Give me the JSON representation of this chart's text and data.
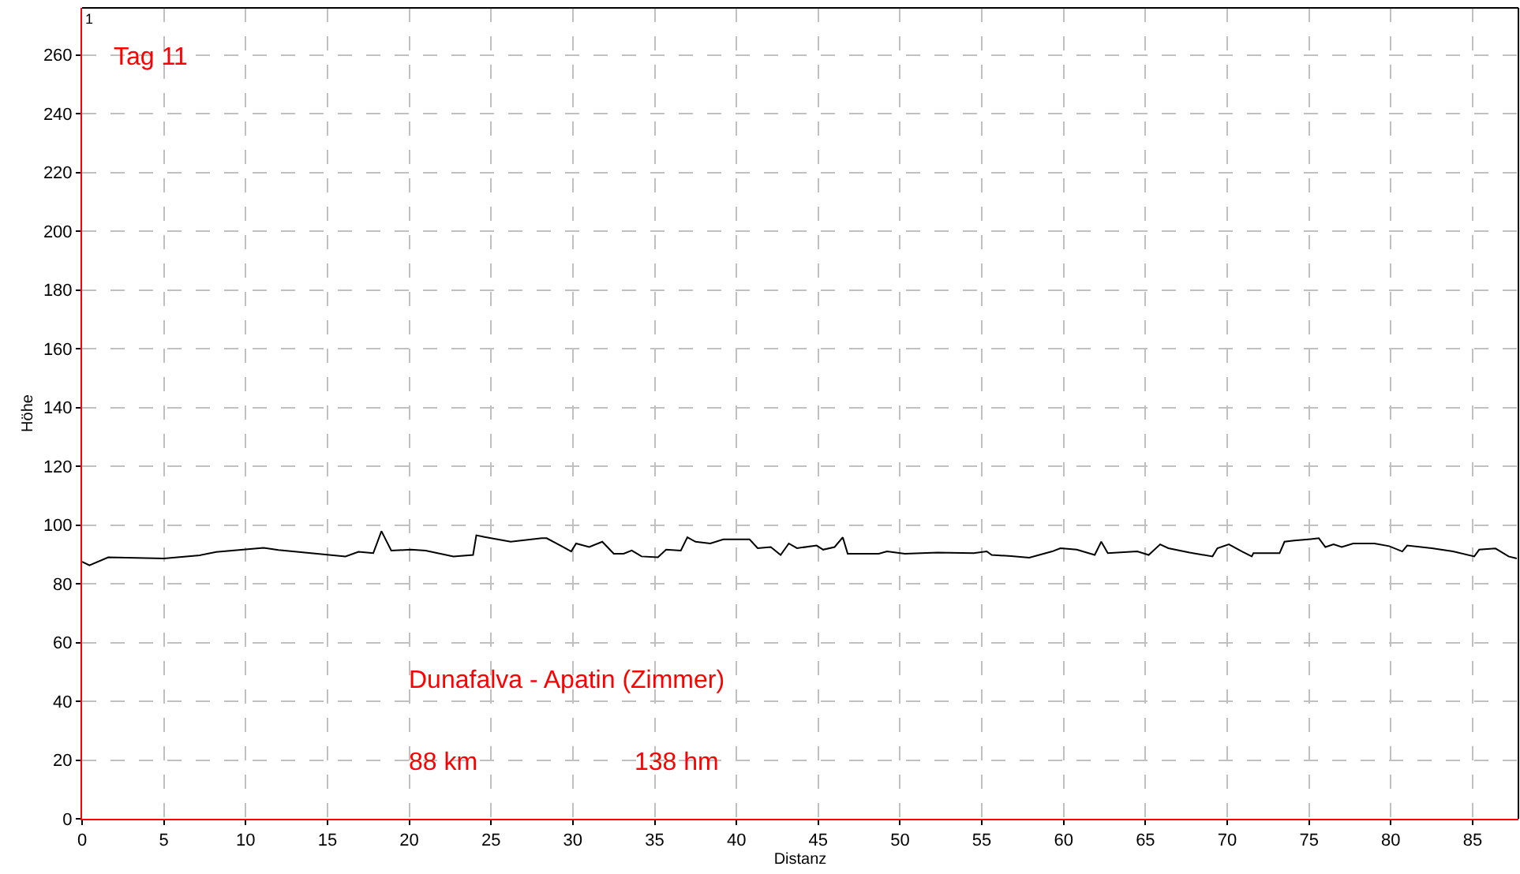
{
  "chart_data": {
    "type": "line",
    "xlabel": "Distanz",
    "ylabel": "Höhe",
    "annotations": [
      "1",
      "Tag 11",
      "Dunafalva - Apatin (Zimmer)",
      "88 km",
      "138 hm"
    ],
    "x": [
      0,
      0.45,
      1.6,
      5,
      7.2,
      8.2,
      11.1,
      12.0,
      14.0,
      16.1,
      16.9,
      17.8,
      18.3,
      18.9,
      20.1,
      21.0,
      22.7,
      23.9,
      24.1,
      24.6,
      26.2,
      28.1,
      28.4,
      29.4,
      29.9,
      30.2,
      31.0,
      31.8,
      32.5,
      33.1,
      33.6,
      34.2,
      35.2,
      35.7,
      36.6,
      37.0,
      37.5,
      38.4,
      39.2,
      40.8,
      41.3,
      42.1,
      42.7,
      43.2,
      43.7,
      44.9,
      45.3,
      46.0,
      46.5,
      46.8,
      48.7,
      49.2,
      50.3,
      52.3,
      54.5,
      55.3,
      55.6,
      56.8,
      57.9,
      59.3,
      59.8,
      60.8,
      61.9,
      62.3,
      62.7,
      64.5,
      65.2,
      65.9,
      66.4,
      67.7,
      69.1,
      69.4,
      70.1,
      70.9,
      71.5,
      71.6,
      73.2,
      73.5,
      74.1,
      75.1,
      75.6,
      76.0,
      76.5,
      77.0,
      77.7,
      79.0,
      79.9,
      80.7,
      81.0,
      82.5,
      83.8,
      85.1,
      85.4,
      86.4,
      87.2,
      87.7
    ],
    "series": [
      {
        "color": "#000000",
        "values": [
          87.5,
          86.3,
          89,
          88.6,
          89.7,
          90.8,
          92.2,
          91.5,
          90.4,
          89.3,
          90.9,
          90.4,
          97.9,
          91.3,
          91.6,
          91.3,
          89.3,
          89.8,
          96.5,
          95.9,
          94.3,
          95.5,
          95.5,
          92.5,
          91.0,
          93.7,
          92.5,
          94.3,
          90.2,
          90.2,
          91.3,
          89.3,
          89.0,
          91.6,
          91.3,
          95.8,
          94.3,
          93.7,
          95.1,
          95.1,
          92.1,
          92.5,
          89.8,
          93.7,
          92.1,
          93.0,
          91.6,
          92.5,
          95.8,
          90.2,
          90.2,
          91.0,
          90.2,
          90.6,
          90.4,
          91.0,
          89.8,
          89.4,
          88.9,
          91.0,
          92.1,
          91.6,
          89.8,
          94.3,
          90.4,
          91.0,
          89.8,
          93.4,
          92.1,
          90.6,
          89.3,
          92.1,
          93.4,
          91.0,
          89.3,
          90.4,
          90.4,
          94.3,
          94.7,
          95.2,
          95.5,
          92.5,
          93.4,
          92.5,
          93.7,
          93.7,
          92.8,
          91.0,
          93.0,
          92.1,
          91.0,
          89.3,
          91.6,
          92.0,
          89.3,
          88.6
        ]
      }
    ],
    "xlim": [
      0,
      87.8
    ],
    "ylim": [
      0,
      276
    ],
    "xticks": [
      0,
      5,
      10,
      15,
      20,
      25,
      30,
      35,
      40,
      45,
      50,
      55,
      60,
      65,
      70,
      75,
      80,
      85
    ],
    "yticks": [
      0,
      20,
      40,
      60,
      80,
      100,
      120,
      140,
      160,
      180,
      200,
      220,
      240,
      260
    ],
    "grid": true,
    "marker": "none",
    "line_style": "solid"
  }
}
